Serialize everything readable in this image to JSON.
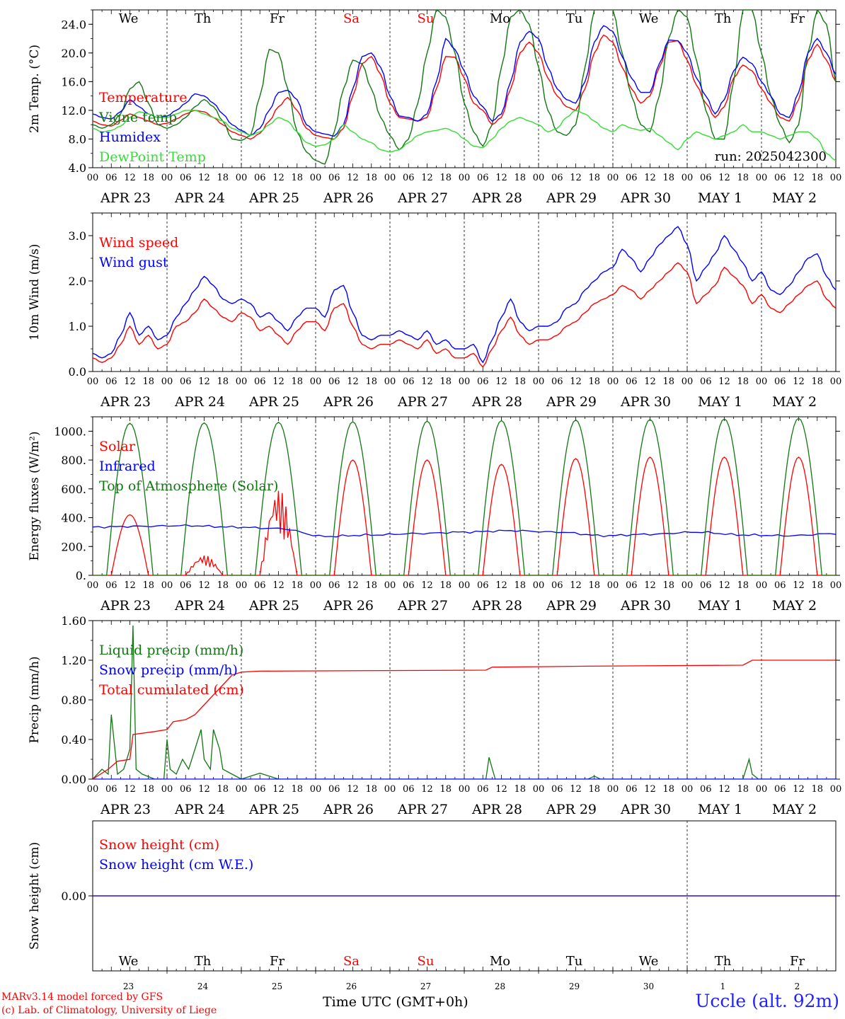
{
  "footer": {
    "model": "MARv3.14 model forced by GFS",
    "lab": "(c) Lab. of Climatology, University of Liege",
    "time_label": "Time UTC (GMT+0h)",
    "location": "Uccle (alt. 92m)"
  },
  "days": {
    "weekdays": [
      "We",
      "Th",
      "Fr",
      "Sa",
      "Su",
      "Mo",
      "Tu",
      "We",
      "Th",
      "Fr"
    ],
    "weekday_colors": [
      "#000000",
      "#000000",
      "#000000",
      "#ff0000",
      "#ff0000",
      "#000000",
      "#000000",
      "#000000",
      "#000000",
      "#000000"
    ],
    "dates": [
      "APR 23",
      "APR 24",
      "APR 25",
      "APR 26",
      "APR 27",
      "APR 28",
      "APR 29",
      "APR 30",
      "MAY  1",
      "MAY  2"
    ],
    "day_numbers": [
      "23",
      "24",
      "25",
      "26",
      "27",
      "28",
      "29",
      "30",
      "1",
      "2"
    ],
    "hour_ticks": [
      "00",
      "06",
      "12",
      "18"
    ],
    "final_tick": "00"
  },
  "chart_data": [
    {
      "type": "line",
      "ylabel": "2m Temp. (°C)",
      "ylim": [
        4,
        26
      ],
      "yticks": [
        "4.0",
        "8.0",
        "12.0",
        "16.0",
        "20.0",
        "24.0"
      ],
      "ytick_values": [
        4,
        8,
        12,
        16,
        20,
        24
      ],
      "annotation": "run: 2025042300",
      "x_hours": [
        0,
        3,
        6,
        9,
        12,
        15,
        18,
        21,
        24,
        27,
        30,
        33,
        36,
        39,
        42,
        45,
        48,
        51,
        54,
        57,
        60,
        63,
        66,
        69,
        72,
        75,
        78,
        81,
        84,
        87,
        90,
        93,
        96,
        99,
        102,
        105,
        108,
        111,
        114,
        117,
        120,
        123,
        126,
        129,
        132,
        135,
        138,
        141,
        144,
        147,
        150,
        153,
        156,
        159,
        162,
        165,
        168,
        171,
        174,
        177,
        180,
        183,
        186,
        189,
        192,
        195,
        198,
        201,
        204,
        207,
        210,
        213,
        216,
        219,
        222,
        225,
        228,
        231,
        234,
        237,
        240
      ],
      "series": [
        {
          "name": "Temperature",
          "color": "#ff0000",
          "values": [
            10.5,
            10,
            9.8,
            10.6,
            11.5,
            11,
            10.5,
            10,
            10.2,
            10.8,
            11.5,
            12,
            11.8,
            11,
            10,
            9,
            8.5,
            8,
            8.8,
            10.5,
            12.5,
            13.8,
            12,
            9.5,
            8.5,
            8.2,
            8,
            9.5,
            14,
            18.5,
            19.5,
            17,
            13,
            11,
            10.8,
            10.5,
            11,
            15,
            19.5,
            19.4,
            16.5,
            13,
            12,
            10,
            11,
            15,
            20,
            21.5,
            20,
            16.5,
            14,
            12.5,
            12,
            15,
            20,
            22.5,
            21.5,
            18,
            15,
            13,
            14,
            18,
            21.5,
            21.7,
            19,
            15.5,
            13,
            11,
            12.5,
            16.5,
            18.3,
            17.5,
            15,
            13,
            11,
            10.5,
            13.5,
            19,
            21.2,
            19,
            16
          ]
        },
        {
          "name": "Vigne temp",
          "color": "#117711",
          "values": [
            10,
            9.5,
            10,
            11.5,
            15,
            16,
            13,
            10,
            9.5,
            10,
            11,
            12.5,
            13.5,
            12.5,
            10.5,
            8,
            7.8,
            8.5,
            14,
            20.5,
            20,
            15,
            9,
            6.2,
            5,
            4.5,
            9,
            15,
            19,
            18.5,
            15,
            11,
            8.5,
            6.5,
            8,
            13,
            20,
            26,
            25,
            20,
            13,
            9,
            7,
            10,
            18,
            25,
            26,
            24,
            18,
            12,
            9,
            8.5,
            10,
            18,
            26,
            27,
            26,
            20,
            14,
            10,
            9,
            14,
            22,
            26,
            25,
            19,
            12,
            8,
            8,
            16,
            26,
            26,
            20,
            14,
            10,
            7.5,
            10,
            20,
            26,
            24,
            16
          ]
        },
        {
          "name": "Humidex",
          "color": "#0000ff",
          "values": [
            11.5,
            11,
            10.8,
            11.8,
            13.5,
            12.5,
            11.5,
            11,
            11.2,
            12,
            13,
            14.3,
            14,
            13,
            11.5,
            10,
            9.2,
            8.5,
            9.5,
            12,
            14.5,
            14.8,
            13.5,
            10,
            9,
            8.7,
            8.4,
            10,
            15,
            19.5,
            20,
            18,
            14,
            11.2,
            11,
            10.5,
            11.5,
            16,
            22,
            20.5,
            17.5,
            14,
            12.5,
            10.5,
            11.5,
            16,
            21.5,
            23,
            22,
            18,
            15,
            13.5,
            13,
            16,
            21.5,
            23.8,
            23,
            19.5,
            16.5,
            14.5,
            14.5,
            18.5,
            21.8,
            21.7,
            20,
            16.5,
            14,
            11.5,
            13.5,
            17.5,
            19.4,
            18.5,
            16,
            14,
            11.5,
            11,
            14.5,
            20,
            22,
            20,
            17
          ]
        },
        {
          "name": "DewPoint Temp",
          "color": "#33dd33",
          "values": [
            9.5,
            9,
            9.2,
            9.8,
            11,
            11.8,
            11.5,
            11,
            11,
            11.5,
            12,
            12,
            11.5,
            11,
            10.5,
            9.5,
            9,
            8.5,
            9,
            10,
            11,
            10.5,
            9,
            7.5,
            7,
            7.2,
            8,
            10,
            9,
            8,
            7.5,
            6.5,
            6.2,
            6.5,
            7.5,
            8.5,
            9,
            9.2,
            9.5,
            9,
            8,
            7,
            6.8,
            8,
            9.5,
            10.5,
            11,
            10.5,
            10,
            9,
            9.5,
            11,
            12,
            11.5,
            10.5,
            9.5,
            9,
            10,
            9.5,
            9.2,
            9.5,
            8.5,
            7.5,
            6.5,
            8,
            9,
            8.5,
            8,
            8.5,
            9,
            10,
            9,
            9,
            8.5,
            8,
            8.5,
            9,
            9,
            8,
            6,
            5
          ]
        }
      ]
    },
    {
      "type": "line",
      "ylabel": "10m Wind (m/s)",
      "ylim": [
        0,
        3.5
      ],
      "yticks": [
        "0.0",
        "1.0",
        "2.0",
        "3.0"
      ],
      "ytick_values": [
        0,
        1,
        2,
        3
      ],
      "x_hours": [
        0,
        3,
        6,
        9,
        12,
        15,
        18,
        21,
        24,
        27,
        30,
        33,
        36,
        39,
        42,
        45,
        48,
        51,
        54,
        57,
        60,
        63,
        66,
        69,
        72,
        75,
        78,
        81,
        84,
        87,
        90,
        93,
        96,
        99,
        102,
        105,
        108,
        111,
        114,
        117,
        120,
        123,
        126,
        129,
        132,
        135,
        138,
        141,
        144,
        147,
        150,
        153,
        156,
        159,
        162,
        165,
        168,
        171,
        174,
        177,
        180,
        183,
        186,
        189,
        192,
        195,
        198,
        201,
        204,
        207,
        210,
        213,
        216,
        219,
        222,
        225,
        228,
        231,
        234,
        237,
        240
      ],
      "series": [
        {
          "name": "Wind speed",
          "color": "#ff0000",
          "values": [
            0.3,
            0.2,
            0.3,
            0.6,
            1,
            0.6,
            0.8,
            0.5,
            0.6,
            1,
            1.1,
            1.3,
            1.6,
            1.4,
            1.2,
            1.1,
            1.3,
            1.2,
            0.9,
            1,
            0.8,
            0.6,
            0.9,
            1.1,
            1.1,
            0.9,
            1.4,
            1.5,
            1,
            0.6,
            0.5,
            0.6,
            0.6,
            0.7,
            0.6,
            0.5,
            0.7,
            0.4,
            0.5,
            0.3,
            0.3,
            0.4,
            0.1,
            0.5,
            0.9,
            1.2,
            0.8,
            0.6,
            0.7,
            0.7,
            0.8,
            1,
            1.1,
            1.3,
            1.5,
            1.6,
            1.7,
            1.9,
            1.8,
            1.6,
            1.8,
            2,
            2.2,
            2.4,
            2.2,
            1.5,
            1.7,
            1.9,
            2.3,
            2.1,
            1.9,
            1.5,
            1.7,
            1.4,
            1.3,
            1.5,
            1.7,
            1.9,
            2,
            1.6,
            1.4
          ]
        },
        {
          "name": "Wind gust",
          "color": "#0000ff",
          "values": [
            0.4,
            0.3,
            0.4,
            0.8,
            1.3,
            0.8,
            1,
            0.7,
            0.8,
            1.2,
            1.5,
            1.8,
            2.1,
            1.9,
            1.6,
            1.5,
            1.6,
            1.5,
            1.2,
            1.3,
            1.1,
            0.9,
            1.2,
            1.4,
            1.4,
            1.2,
            1.8,
            1.9,
            1.3,
            0.8,
            0.7,
            0.8,
            0.8,
            0.9,
            0.8,
            0.7,
            0.9,
            0.6,
            0.7,
            0.5,
            0.5,
            0.6,
            0.2,
            0.7,
            1.2,
            1.6,
            1.1,
            0.9,
            1,
            1,
            1.1,
            1.4,
            1.5,
            1.8,
            2,
            2.2,
            2.3,
            2.7,
            2.5,
            2.2,
            2.5,
            2.8,
            3,
            3.2,
            2.8,
            2,
            2.3,
            2.6,
            3,
            2.7,
            2.4,
            2,
            2.2,
            1.8,
            1.7,
            1.9,
            2.2,
            2.5,
            2.6,
            2.1,
            1.8
          ]
        }
      ]
    },
    {
      "type": "line",
      "ylabel": "Energy fluxes (W/m²)",
      "ylim": [
        0,
        1100
      ],
      "yticks": [
        "0.",
        "200.",
        "400.",
        "600.",
        "800.",
        "1000."
      ],
      "ytick_values": [
        0,
        200,
        400,
        600,
        800,
        1000
      ],
      "series": [
        {
          "name": "Solar",
          "color": "#ff0000",
          "daily_peak": [
            420,
            140,
            600,
            800,
            800,
            770,
            810,
            820,
            820,
            820
          ],
          "day_shape": [
            1,
            0.33,
            0.75,
            1,
            1,
            1,
            1,
            1,
            1,
            1
          ]
        },
        {
          "name": "Infrared",
          "color": "#0000ff",
          "values": [
            335,
            340,
            345,
            335,
            325,
            270,
            280,
            290,
            300,
            310,
            300,
            275,
            285,
            300,
            280,
            275,
            290
          ]
        },
        {
          "name": "Top of Atmosphere (Solar)",
          "color": "#117711",
          "daily_peak": [
            1055,
            1058,
            1062,
            1066,
            1070,
            1074,
            1078,
            1082,
            1086,
            1090
          ]
        }
      ]
    },
    {
      "type": "line",
      "ylabel": "Precip (mm/h)",
      "ylim": [
        0,
        1.6
      ],
      "yticks": [
        "0.00",
        "0.40",
        "0.80",
        "1.20",
        "1.60"
      ],
      "ytick_values": [
        0,
        0.4,
        0.8,
        1.2,
        1.6
      ],
      "series": [
        {
          "name": "Liquid precip (mm/h)",
          "color": "#117711",
          "points": [
            [
              0,
              0
            ],
            [
              3,
              0.1
            ],
            [
              5,
              0.05
            ],
            [
              6,
              0.65
            ],
            [
              8,
              0.05
            ],
            [
              10,
              0.1
            ],
            [
              12,
              0.3
            ],
            [
              13,
              1.55
            ],
            [
              14,
              0.1
            ],
            [
              16,
              0.05
            ],
            [
              20,
              0
            ],
            [
              23,
              0
            ],
            [
              24,
              0.4
            ],
            [
              25,
              0.1
            ],
            [
              27,
              0.05
            ],
            [
              29,
              0.2
            ],
            [
              31,
              0.1
            ],
            [
              33,
              0.3
            ],
            [
              35,
              0.5
            ],
            [
              36,
              0.2
            ],
            [
              38,
              0.1
            ],
            [
              39,
              0.5
            ],
            [
              41,
              0.3
            ],
            [
              42,
              0.1
            ],
            [
              45,
              0.05
            ],
            [
              48,
              0
            ],
            [
              54,
              0.06
            ],
            [
              60,
              0
            ],
            [
              127,
              0
            ],
            [
              128,
              0.22
            ],
            [
              130,
              0
            ],
            [
              160,
              0
            ],
            [
              162,
              0.03
            ],
            [
              164,
              0
            ],
            [
              210,
              0
            ],
            [
              212,
              0.2
            ],
            [
              213,
              0.05
            ],
            [
              215,
              0
            ],
            [
              240,
              0
            ]
          ]
        },
        {
          "name": "Snow precip (mm/h)",
          "color": "#0000ff",
          "points": [
            [
              0,
              0
            ],
            [
              240,
              0
            ]
          ]
        },
        {
          "name": "Total cumulated (cm)",
          "color": "#ff0000",
          "points": [
            [
              0,
              0
            ],
            [
              5,
              0.1
            ],
            [
              8,
              0.18
            ],
            [
              12,
              0.2
            ],
            [
              13,
              0.45
            ],
            [
              20,
              0.48
            ],
            [
              24,
              0.5
            ],
            [
              26,
              0.58
            ],
            [
              30,
              0.6
            ],
            [
              33,
              0.65
            ],
            [
              36,
              0.75
            ],
            [
              39,
              0.85
            ],
            [
              42,
              0.95
            ],
            [
              45,
              1.05
            ],
            [
              48,
              1.08
            ],
            [
              54,
              1.09
            ],
            [
              127,
              1.1
            ],
            [
              129,
              1.13
            ],
            [
              160,
              1.14
            ],
            [
              210,
              1.15
            ],
            [
              213,
              1.2
            ],
            [
              240,
              1.2
            ]
          ]
        }
      ]
    },
    {
      "type": "line",
      "ylabel": "Snow height (cm)",
      "ylim": [
        -1,
        1
      ],
      "yticks": [
        "0.00"
      ],
      "ytick_values": [
        0
      ],
      "series": [
        {
          "name": "Snow height (cm)",
          "color": "#ff0000",
          "points": [
            [
              0,
              0
            ],
            [
              240,
              0
            ]
          ]
        },
        {
          "name": "Snow height (cm W.E.)",
          "color": "#0000ff",
          "points": [
            [
              0,
              0
            ],
            [
              240,
              0
            ]
          ]
        }
      ]
    }
  ]
}
